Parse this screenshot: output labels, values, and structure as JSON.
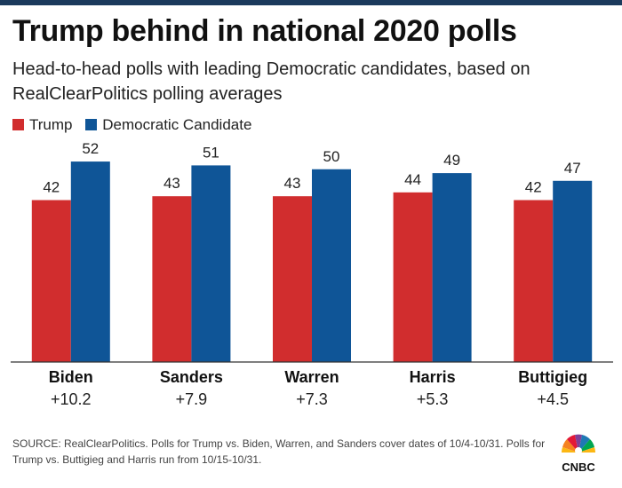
{
  "header": {
    "title": "Trump behind in national 2020 polls",
    "subtitle": "Head-to-head polls with leading Democratic candidates, based on RealClearPolitics polling averages"
  },
  "legend": [
    {
      "label": "Trump",
      "color": "#d12d2e"
    },
    {
      "label": "Democratic Candidate",
      "color": "#0f5597"
    }
  ],
  "chart_data": {
    "type": "bar",
    "categories": [
      "Biden",
      "Sanders",
      "Warren",
      "Harris",
      "Buttigieg"
    ],
    "margins": [
      "+10.2",
      "+7.9",
      "+7.3",
      "+5.3",
      "+4.5"
    ],
    "series": [
      {
        "name": "Trump",
        "values": [
          42,
          43,
          43,
          44,
          42
        ],
        "color": "#d12d2e"
      },
      {
        "name": "Democratic Candidate",
        "values": [
          52,
          51,
          50,
          49,
          47
        ],
        "color": "#0f5597"
      }
    ],
    "title": "Trump behind in national 2020 polls",
    "ylim": [
      0,
      58
    ],
    "grid": false,
    "legend_position": "top-left"
  },
  "footer": {
    "source": "SOURCE: RealClearPolitics. Polls for Trump vs. Biden, Warren, and Sanders cover dates of 10/4-10/31. Polls for Trump vs. Buttigieg and Harris run from 10/15-10/31.",
    "logo_text": "CNBC"
  }
}
